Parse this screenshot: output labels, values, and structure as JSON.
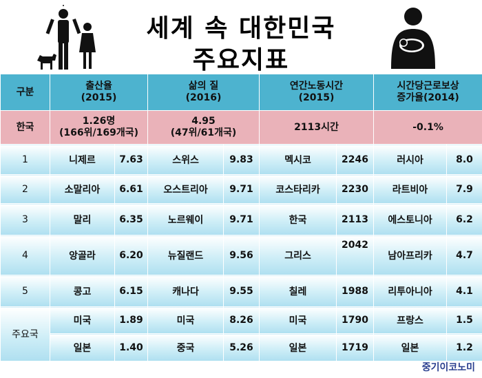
{
  "title": {
    "line1": "세계 속 대한민국",
    "line2": "주요지표"
  },
  "header": {
    "category": "구분",
    "col1": {
      "label": "출산율",
      "year": "(2015)"
    },
    "col2": {
      "label": "삶의 질",
      "year": "(2016)"
    },
    "col3": {
      "label": "연간노동시간",
      "year": "(2015)"
    },
    "col4": {
      "label": "시간당근로보상",
      "label2": "증가율(2014)"
    }
  },
  "korea": {
    "label": "한국",
    "col1_value": "1.26명",
    "col1_rank": "(166위/169개국)",
    "col2_value": "4.95",
    "col2_rank": "(47위/61개국)",
    "col3": "2113시간",
    "col4": "-0.1%"
  },
  "rows": [
    {
      "rank": "1",
      "c1": "니제르",
      "v1": "7.63",
      "c2": "스위스",
      "v2": "9.83",
      "c3": "멕시코",
      "v3": "2246",
      "c4": "러시아",
      "v4": "8.0"
    },
    {
      "rank": "2",
      "c1": "소말리아",
      "v1": "6.61",
      "c2": "오스트리아",
      "v2": "9.71",
      "c3": "코스타리카",
      "v3": "2230",
      "c4": "라트비아",
      "v4": "7.9"
    },
    {
      "rank": "3",
      "c1": "말리",
      "v1": "6.35",
      "c2": "노르웨이",
      "v2": "9.71",
      "c3": "한국",
      "v3": "2113",
      "c4": "에스토니아",
      "v4": "6.2"
    },
    {
      "rank": "4",
      "c1": "앙골라",
      "v1": "6.20",
      "c2": "뉴질랜드",
      "v2": "9.56",
      "c3": "그리스",
      "v3": "2042",
      "c4": "남아프리카",
      "v4": "4.7"
    },
    {
      "rank": "5",
      "c1": "콩고",
      "v1": "6.15",
      "c2": "캐나다",
      "v2": "9.55",
      "c3": "칠레",
      "v3": "1988",
      "c4": "리투아니아",
      "v4": "4.1"
    }
  ],
  "major": {
    "label": "주요국",
    "rows": [
      {
        "c1": "미국",
        "v1": "1.89",
        "c2": "미국",
        "v2": "8.26",
        "c3": "미국",
        "v3": "1790",
        "c4": "프랑스",
        "v4": "1.5"
      },
      {
        "c1": "일본",
        "v1": "1.40",
        "c2": "중국",
        "v2": "5.26",
        "c3": "일본",
        "v3": "1719",
        "c4": "일본",
        "v4": "1.2"
      }
    ]
  },
  "brand": "중기이코노미",
  "icons": {
    "left": "family-icon",
    "right": "mother-baby-icon"
  },
  "colors": {
    "header": "#4db3cf",
    "korea_row": "#eab2b9",
    "row_light": "#cfeef7",
    "brand": "#2a3f8f"
  }
}
